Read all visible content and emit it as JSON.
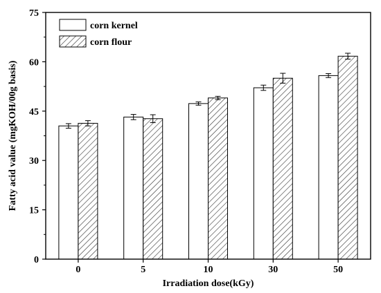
{
  "chart_data": {
    "type": "bar",
    "xlabel": "Irradiation dose(kGy)",
    "ylabel": "Fatty acid value (mgKOH/00g basis)",
    "categories": [
      "0",
      "5",
      "10",
      "30",
      "50"
    ],
    "ylim": [
      0,
      75
    ],
    "yticks": [
      0,
      15,
      30,
      45,
      60,
      75
    ],
    "legend_position": "top-left",
    "grid": false,
    "series": [
      {
        "name": "corn kernel",
        "pattern": "solid-white",
        "values": [
          40.5,
          43.2,
          47.3,
          52.1,
          55.8
        ],
        "errors": [
          0.7,
          0.8,
          0.5,
          0.8,
          0.6
        ]
      },
      {
        "name": "corn flour",
        "pattern": "diagonal-hatch",
        "values": [
          41.3,
          42.7,
          49.0,
          55.0,
          61.7
        ],
        "errors": [
          0.8,
          1.2,
          0.5,
          1.5,
          0.9
        ]
      }
    ]
  }
}
